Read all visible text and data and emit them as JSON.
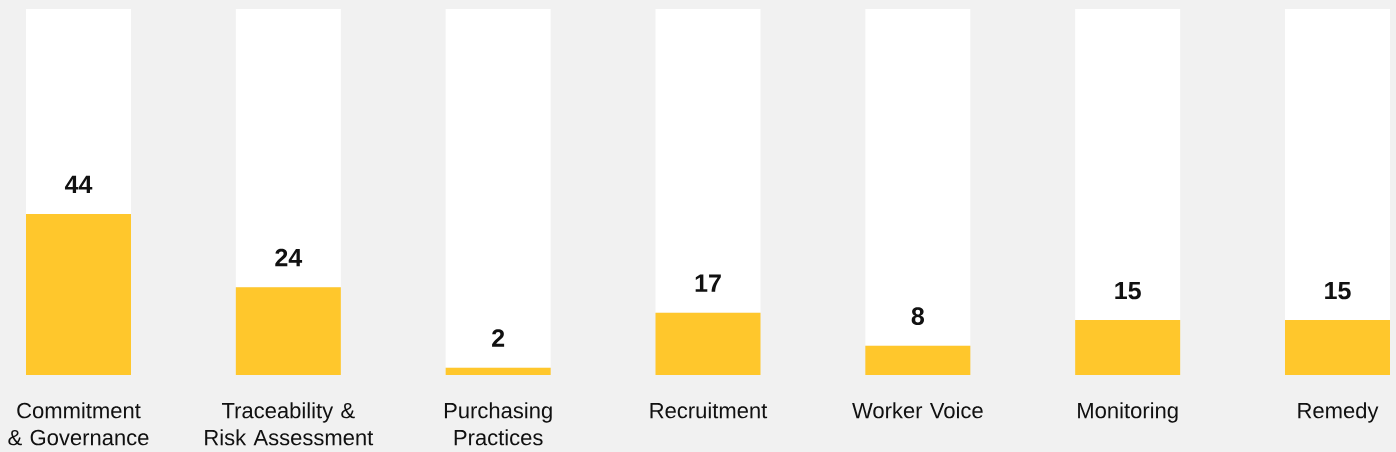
{
  "chart_data": {
    "type": "bar",
    "categories": [
      "Commitment & Governance",
      "Traceability & Risk Assessment",
      "Purchasing Practices",
      "Recruitment",
      "Worker Voice",
      "Monitoring",
      "Remedy"
    ],
    "stacked": true,
    "ylim": [
      0,
      100
    ],
    "tick_labels": "x",
    "series": [
      {
        "color": "#ffc72c",
        "values": [
          44,
          24,
          2,
          17,
          8,
          15,
          15
        ],
        "value_labels": [
          "44",
          "24",
          "2",
          "17",
          "8",
          "15",
          "15"
        ]
      },
      {
        "color": "#ffffff",
        "values": [
          56,
          76,
          98,
          83,
          92,
          85,
          85
        ]
      }
    ]
  }
}
